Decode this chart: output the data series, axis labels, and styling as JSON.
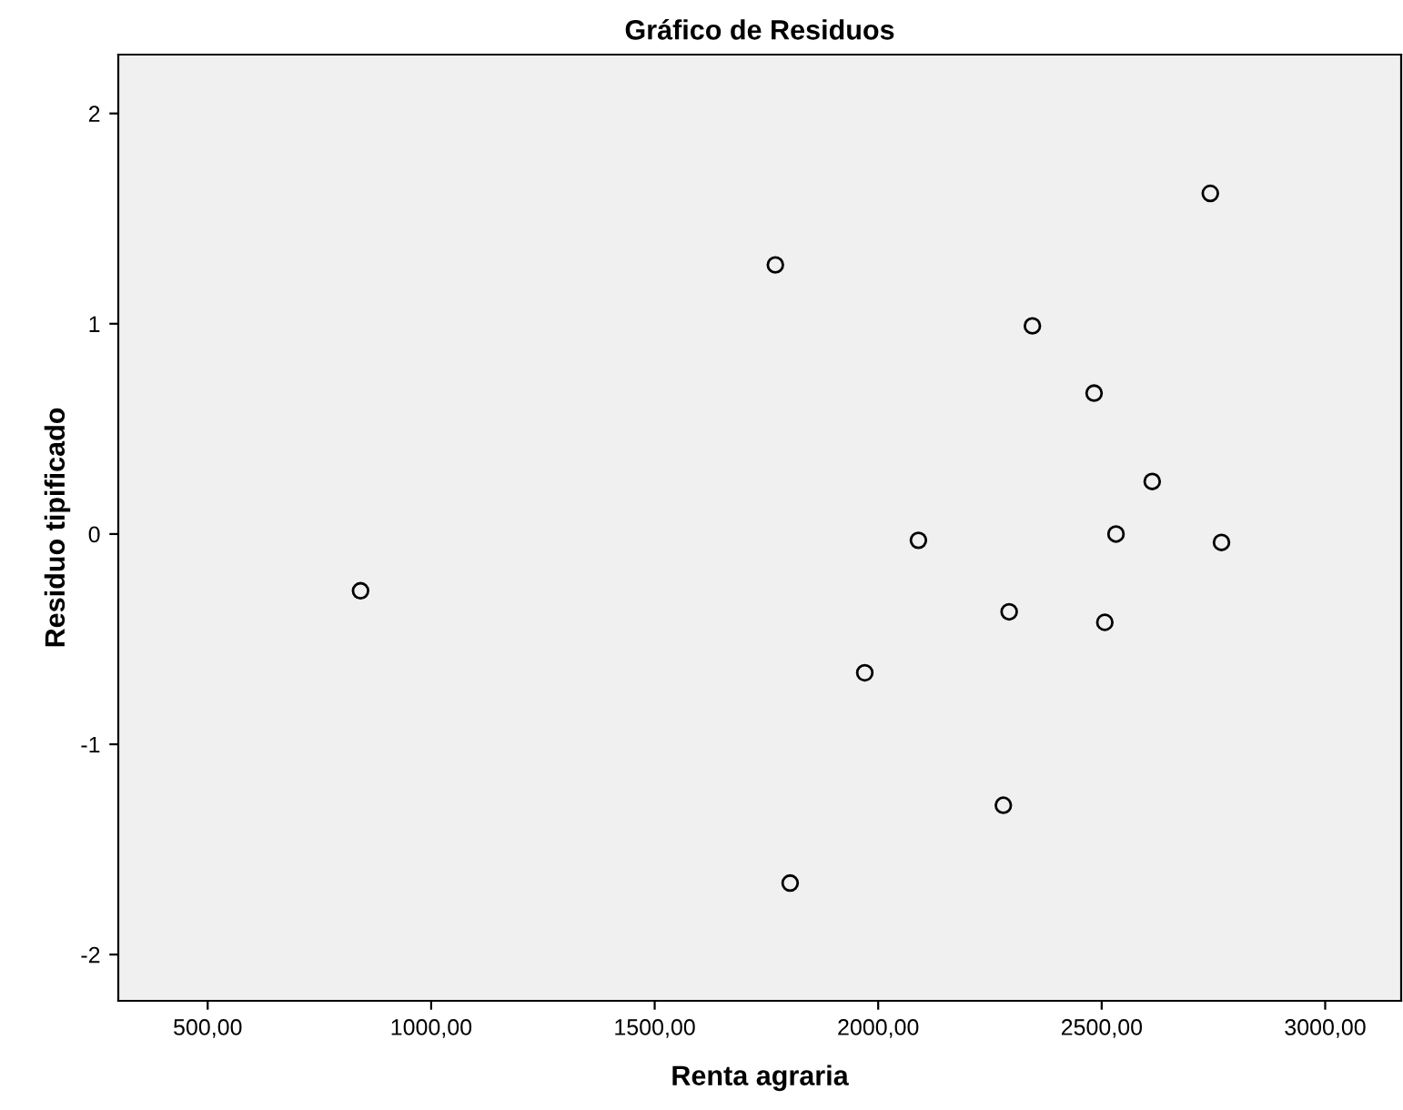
{
  "chart_data": {
    "type": "scatter",
    "title": "Gráfico de Residuos",
    "xlabel": "Renta agraria",
    "ylabel": "Residuo tipificado",
    "x": [
      842,
      1770,
      1803,
      1970,
      2090,
      2293,
      2280,
      2345,
      2483,
      2507,
      2532,
      2613,
      2743,
      2768
    ],
    "series": [
      {
        "color": "#000000",
        "values": [
          -0.27,
          1.28,
          -1.66,
          -0.66,
          -0.03,
          -0.37,
          -1.29,
          0.99,
          0.67,
          -0.42,
          0.0,
          0.25,
          1.62,
          -0.04
        ]
      }
    ],
    "xlim": [
      300,
      3170
    ],
    "ylim": [
      -2.22,
      2.28
    ],
    "xticks": [
      {
        "value": 500,
        "label": "500,00"
      },
      {
        "value": 1000,
        "label": "1000,00"
      },
      {
        "value": 1500,
        "label": "1500,00"
      },
      {
        "value": 2000,
        "label": "2000,00"
      },
      {
        "value": 2500,
        "label": "2500,00"
      },
      {
        "value": 3000,
        "label": "3000,00"
      }
    ],
    "yticks": [
      -2,
      -1,
      0,
      1,
      2
    ],
    "marker": "circle",
    "grid": false,
    "legend": false
  }
}
